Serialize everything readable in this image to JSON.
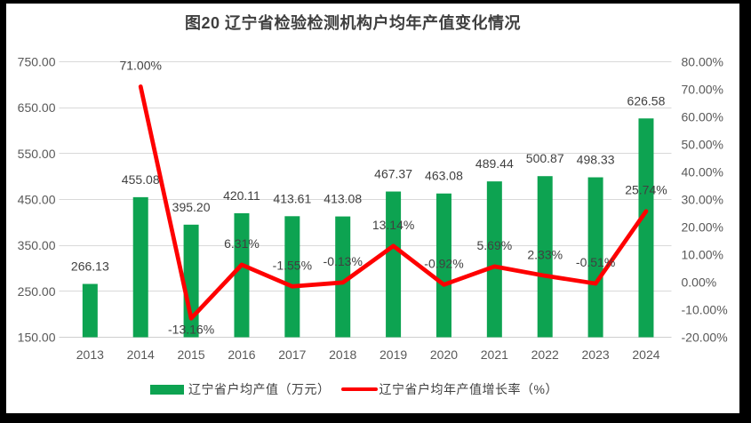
{
  "title": "图20 辽宁省检验检测机构户均年产值变化情况",
  "chart_data": {
    "type": "combo-bar-line",
    "categories": [
      "2013",
      "2014",
      "2015",
      "2016",
      "2017",
      "2018",
      "2019",
      "2020",
      "2021",
      "2022",
      "2023",
      "2024"
    ],
    "series": [
      {
        "name": "辽宁省户均产值（万元）",
        "type": "bar",
        "axis": "left",
        "color": "#0da351",
        "values": [
          266.13,
          455.08,
          395.2,
          420.11,
          413.61,
          413.08,
          467.37,
          463.08,
          489.44,
          500.87,
          498.33,
          626.58
        ]
      },
      {
        "name": "辽宁省户均年产值增长率（%）",
        "type": "line",
        "axis": "right",
        "color": "#fe0000",
        "values": [
          null,
          71.0,
          -13.16,
          6.31,
          -1.55,
          -0.13,
          13.14,
          -0.92,
          5.69,
          2.33,
          -0.51,
          25.74
        ]
      }
    ],
    "left_axis": {
      "min": 150,
      "max": 750,
      "step": 100,
      "tick_format": "0.00"
    },
    "right_axis": {
      "min": -20,
      "max": 80,
      "step": 10,
      "tick_format": "0.00%"
    },
    "grid": true,
    "legend_position": "bottom",
    "label_below_index": 2
  },
  "colors": {
    "bar": "#0da351",
    "line": "#fe0000",
    "grid": "#d9d9d9",
    "axis_line": "#cfcfcf",
    "axis_text": "#595959",
    "data_label": "#404040",
    "title_text": "#3f3f3f",
    "frame": "#000000",
    "background": "#ffffff"
  }
}
